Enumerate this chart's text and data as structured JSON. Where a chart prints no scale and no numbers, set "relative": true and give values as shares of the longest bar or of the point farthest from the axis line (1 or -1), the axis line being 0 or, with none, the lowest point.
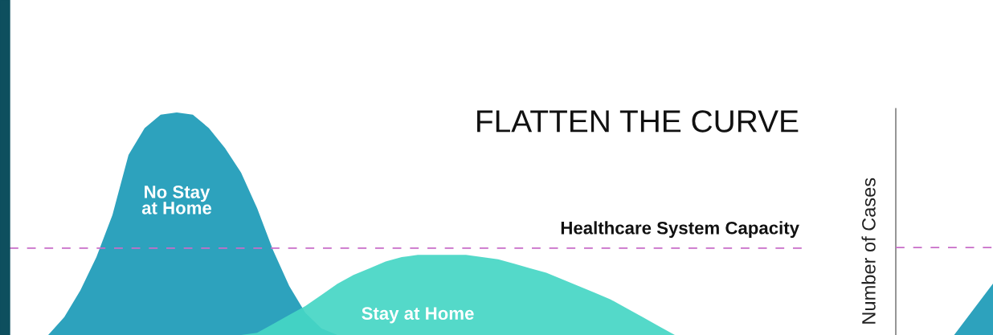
{
  "chart_data": [
    {
      "type": "area",
      "title": "FLATTEN THE CURVE",
      "relative": true,
      "categories": [
        null,
        null,
        null,
        null,
        null,
        null,
        null,
        null,
        null,
        null,
        null,
        null,
        null,
        null,
        null,
        null,
        null,
        null,
        null,
        null,
        null,
        null,
        null,
        null,
        null,
        null,
        null,
        null,
        null,
        null,
        null,
        null,
        null,
        null,
        null,
        null,
        null,
        null,
        null,
        null,
        null,
        null,
        null,
        null,
        null,
        null,
        null,
        null,
        null,
        null
      ],
      "series": [
        {
          "name": "No Stay at Home",
          "color": "#1b9ab7",
          "values": [
            null,
            null,
            0,
            0.08,
            0.2,
            0.35,
            0.54,
            0.81,
            0.93,
            0.99,
            1.0,
            0.99,
            0.93,
            0.84,
            0.73,
            0.57,
            0.38,
            0.22,
            0.1,
            0.03,
            0,
            null,
            null,
            null,
            null,
            null,
            null,
            null,
            null,
            null,
            null,
            null,
            null,
            null,
            null,
            null,
            null,
            null,
            null,
            null,
            null,
            null,
            null,
            null,
            null,
            null,
            null,
            null,
            null,
            null
          ]
        },
        {
          "name": "Stay at Home",
          "color": "#45d6c4",
          "values": [
            null,
            null,
            null,
            null,
            null,
            null,
            null,
            null,
            null,
            null,
            null,
            null,
            null,
            null,
            0,
            0.01,
            0.05,
            0.09,
            0.13,
            0.18,
            0.23,
            0.27,
            0.3,
            0.33,
            0.35,
            0.36,
            0.36,
            0.36,
            0.36,
            0.35,
            0.34,
            0.32,
            0.3,
            0.28,
            0.25,
            0.22,
            0.19,
            0.16,
            0.12,
            0.08,
            0.04,
            0,
            null,
            null,
            null,
            null,
            null,
            null,
            null,
            null
          ]
        }
      ],
      "ref_lines": [
        {
          "axis": "y",
          "value": 0.39,
          "label": "Healthcare System Capacity",
          "color": "#c86dc8",
          "line_style": "dashed"
        }
      ]
    },
    {
      "type": "area",
      "ylabel": "Number of Cases",
      "relative": true,
      "categories": [
        null,
        null,
        null,
        null,
        null,
        null
      ],
      "series": [
        {
          "color": "#1b9ab7",
          "values": [
            null,
            null,
            null,
            0,
            0.5,
            1
          ]
        }
      ],
      "ref_lines": [
        {
          "axis": "y",
          "value": 1.7,
          "color": "#c86dc8",
          "line_style": "dashed"
        }
      ]
    }
  ]
}
